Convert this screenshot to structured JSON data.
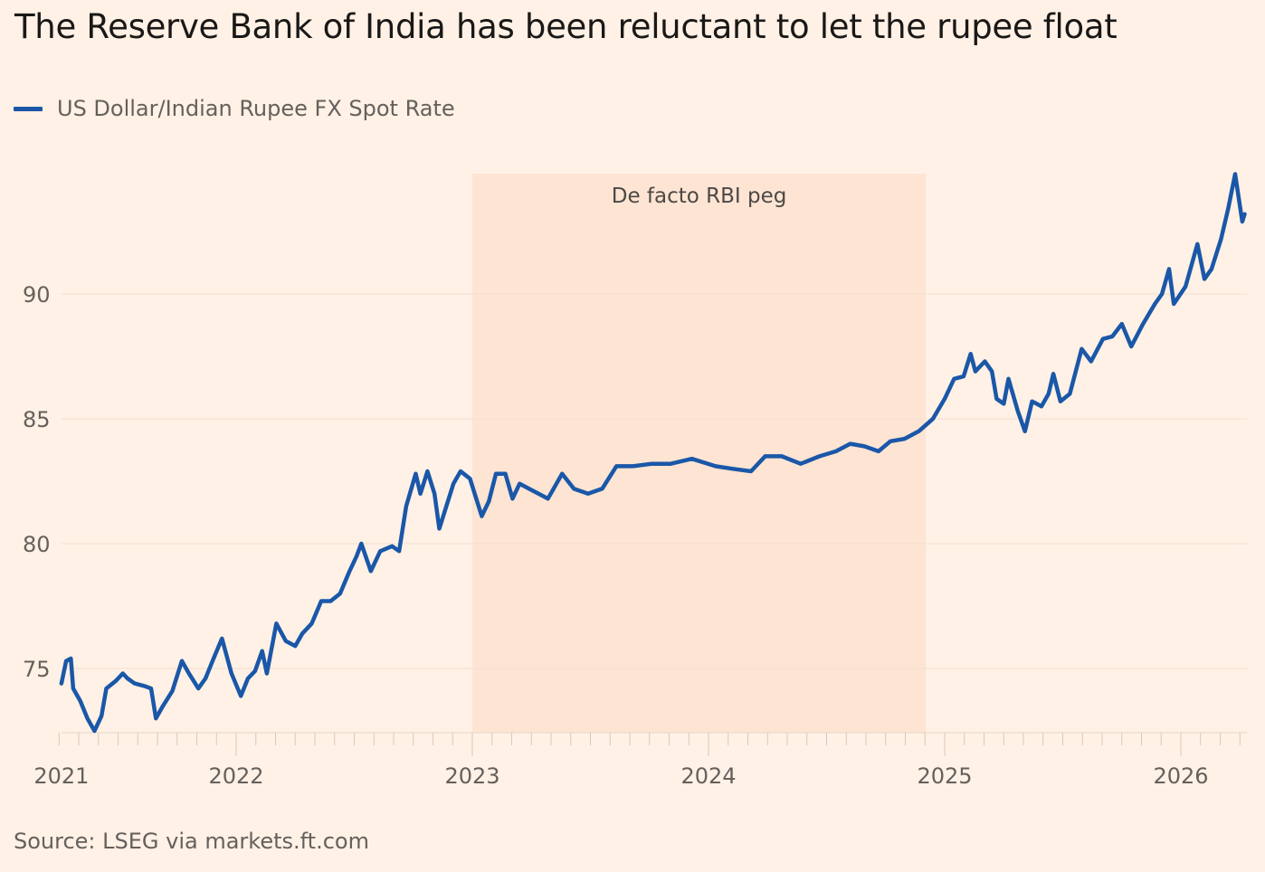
{
  "title": "The Reserve Bank of India has been reluctant to let the rupee float",
  "source": "Source: LSEG via markets.ft.com",
  "colors": {
    "background": "#fff1e5",
    "line": "#1a57a8",
    "band": "#fde4d3",
    "grid": "#f2dfd0"
  },
  "chart_data": {
    "type": "line",
    "title": "The Reserve Bank of India has been reluctant to let the rupee float",
    "xlabel": "",
    "ylabel": "",
    "xlim": [
      2021.26,
      2026.28
    ],
    "ylim": [
      72,
      95.5
    ],
    "grid": true,
    "legend_position": "top-left",
    "y_ticks": [
      {
        "label": "75",
        "value": 75
      },
      {
        "label": "80",
        "value": 80
      },
      {
        "label": "85",
        "value": 85
      },
      {
        "label": "90",
        "value": 90
      }
    ],
    "x_ticks": [
      {
        "label": "2021",
        "value": 2021.26
      },
      {
        "label": "2022",
        "value": 2022
      },
      {
        "label": "2023",
        "value": 2023
      },
      {
        "label": "2024",
        "value": 2024
      },
      {
        "label": "2025",
        "value": 2025
      },
      {
        "label": "2026",
        "value": 2026
      }
    ],
    "annotation": {
      "label": "De facto RBI peg",
      "start": 2023.0,
      "end": 2024.92
    },
    "series": [
      {
        "name": "US Dollar/Indian Rupee FX Spot Rate",
        "x": [
          2021.26,
          2021.28,
          2021.3,
          2021.31,
          2021.34,
          2021.37,
          2021.4,
          2021.43,
          2021.45,
          2021.49,
          2021.52,
          2021.54,
          2021.57,
          2021.61,
          2021.64,
          2021.66,
          2021.69,
          2021.73,
          2021.77,
          2021.8,
          2021.84,
          2021.87,
          2021.9,
          2021.94,
          2021.98,
          2022.02,
          2022.05,
          2022.08,
          2022.11,
          2022.13,
          2022.17,
          2022.21,
          2022.25,
          2022.28,
          2022.32,
          2022.36,
          2022.4,
          2022.44,
          2022.48,
          2022.51,
          2022.53,
          2022.57,
          2022.61,
          2022.66,
          2022.69,
          2022.72,
          2022.76,
          2022.78,
          2022.81,
          2022.84,
          2022.86,
          2022.89,
          2022.92,
          2022.95,
          2022.99,
          2023.02,
          2023.04,
          2023.07,
          2023.1,
          2023.14,
          2023.17,
          2023.2,
          2023.24,
          2023.28,
          2023.32,
          2023.38,
          2023.43,
          2023.49,
          2023.55,
          2023.61,
          2023.68,
          2023.76,
          2023.84,
          2023.93,
          2024.03,
          2024.1,
          2024.18,
          2024.24,
          2024.31,
          2024.39,
          2024.47,
          2024.54,
          2024.6,
          2024.66,
          2024.72,
          2024.77,
          2024.83,
          2024.89,
          2024.95,
          2025.0,
          2025.04,
          2025.08,
          2025.11,
          2025.13,
          2025.17,
          2025.2,
          2025.22,
          2025.25,
          2025.27,
          2025.31,
          2025.34,
          2025.37,
          2025.41,
          2025.44,
          2025.46,
          2025.49,
          2025.53,
          2025.58,
          2025.62,
          2025.67,
          2025.71,
          2025.75,
          2025.79,
          2025.84,
          2025.89,
          2025.92,
          2025.95,
          2025.97,
          2026.02,
          2026.07,
          2026.1,
          2026.13,
          2026.17,
          2026.2,
          2026.23,
          2026.26,
          2026.27
        ],
        "values": [
          74.4,
          75.3,
          75.4,
          74.2,
          73.7,
          73.0,
          72.5,
          73.1,
          74.2,
          74.5,
          74.8,
          74.6,
          74.4,
          74.3,
          74.2,
          73.0,
          73.5,
          74.1,
          75.3,
          74.8,
          74.2,
          74.6,
          75.3,
          76.2,
          74.8,
          73.9,
          74.6,
          74.9,
          75.7,
          74.8,
          76.8,
          76.1,
          75.9,
          76.4,
          76.8,
          77.7,
          77.7,
          78.0,
          78.9,
          79.5,
          80.0,
          78.9,
          79.7,
          79.9,
          79.7,
          81.5,
          82.8,
          82.0,
          82.9,
          82.0,
          80.6,
          81.5,
          82.4,
          82.9,
          82.6,
          81.7,
          81.1,
          81.7,
          82.8,
          82.8,
          81.8,
          82.4,
          82.2,
          82.0,
          81.8,
          82.8,
          82.2,
          82.0,
          82.2,
          83.1,
          83.1,
          83.2,
          83.2,
          83.4,
          83.1,
          83.0,
          82.9,
          83.5,
          83.5,
          83.2,
          83.5,
          83.7,
          84.0,
          83.9,
          83.7,
          84.1,
          84.2,
          84.5,
          85.0,
          85.8,
          86.6,
          86.7,
          87.6,
          86.9,
          87.3,
          86.9,
          85.8,
          85.6,
          86.6,
          85.3,
          84.5,
          85.7,
          85.5,
          86.0,
          86.8,
          85.7,
          86.0,
          87.8,
          87.3,
          88.2,
          88.3,
          88.8,
          87.9,
          88.8,
          89.6,
          90.0,
          91.0,
          89.6,
          90.3,
          92.0,
          90.6,
          91.0,
          92.2,
          93.4,
          94.8,
          92.9,
          93.2
        ]
      }
    ]
  }
}
